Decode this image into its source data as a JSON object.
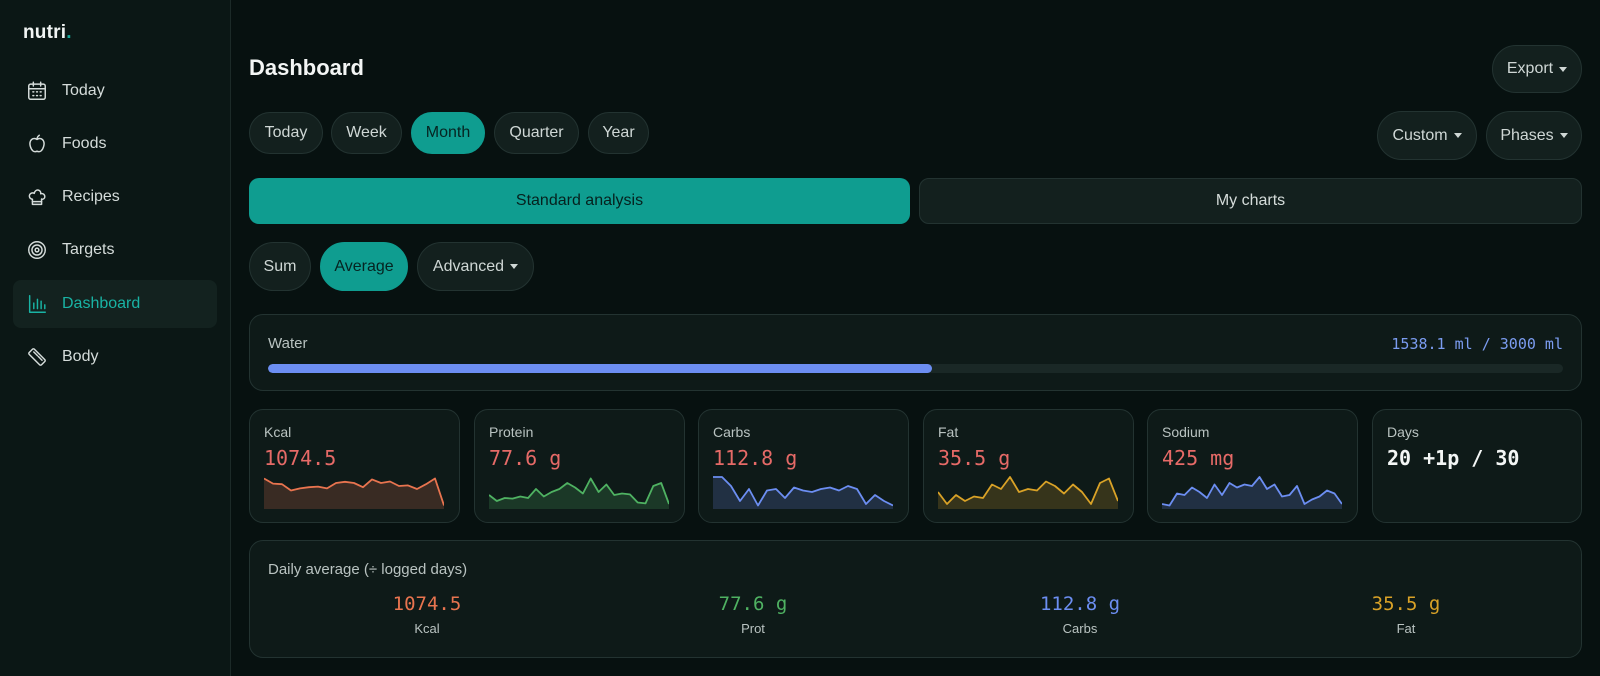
{
  "app": {
    "logo": "nutri",
    "logo_dot": "."
  },
  "sidebar": {
    "items": [
      {
        "label": "Today",
        "icon": "calendar-icon"
      },
      {
        "label": "Foods",
        "icon": "apple-icon"
      },
      {
        "label": "Recipes",
        "icon": "chef-hat-icon"
      },
      {
        "label": "Targets",
        "icon": "target-icon"
      },
      {
        "label": "Dashboard",
        "icon": "bar-chart-icon",
        "active": true
      },
      {
        "label": "Body",
        "icon": "ruler-icon"
      }
    ]
  },
  "header": {
    "title": "Dashboard",
    "export_label": "Export"
  },
  "periods": [
    "Today",
    "Week",
    "Month",
    "Quarter",
    "Year"
  ],
  "active_period": "Month",
  "range": {
    "custom_label": "Custom",
    "phases_label": "Phases"
  },
  "analysis_tabs": {
    "standard": "Standard analysis",
    "charts": "My charts"
  },
  "modes": {
    "sum": "Sum",
    "average": "Average",
    "advanced": "Advanced"
  },
  "water": {
    "label": "Water",
    "value": "1538.1 ml / 3000 ml",
    "fraction": 0.5127,
    "color": "#6c8ef2"
  },
  "stats": [
    {
      "label": "Kcal",
      "value": "1074.5",
      "color": "#e8744f",
      "series": [
        0.95,
        0.78,
        0.76,
        0.55,
        0.62,
        0.66,
        0.68,
        0.62,
        0.8,
        0.84,
        0.8,
        0.66,
        0.92,
        0.8,
        0.85,
        0.7,
        0.72,
        0.6,
        0.76,
        0.95,
        0.05
      ]
    },
    {
      "label": "Protein",
      "value": "77.6 g",
      "color": "#4fb262",
      "series": [
        0.4,
        0.2,
        0.3,
        0.28,
        0.35,
        0.3,
        0.6,
        0.35,
        0.5,
        0.6,
        0.8,
        0.65,
        0.45,
        0.95,
        0.5,
        0.75,
        0.4,
        0.45,
        0.42,
        0.15,
        0.12,
        0.7,
        0.8,
        0.1
      ]
    },
    {
      "label": "Carbs",
      "value": "112.8 g",
      "color": "#6c8ef2",
      "series": [
        1.0,
        1.0,
        0.7,
        0.2,
        0.6,
        0.05,
        0.55,
        0.6,
        0.3,
        0.65,
        0.55,
        0.5,
        0.6,
        0.65,
        0.55,
        0.7,
        0.6,
        0.1,
        0.4,
        0.2,
        0.05
      ]
    },
    {
      "label": "Fat",
      "value": "35.5 g",
      "color": "#d9a227",
      "series": [
        0.5,
        0.1,
        0.4,
        0.2,
        0.35,
        0.3,
        0.75,
        0.6,
        1.0,
        0.5,
        0.6,
        0.55,
        0.85,
        0.7,
        0.45,
        0.75,
        0.5,
        0.1,
        0.8,
        0.95,
        0.2
      ]
    },
    {
      "label": "Sodium",
      "value": "425 mg",
      "color": "#6c8ef2",
      "series": [
        0.1,
        0.05,
        0.45,
        0.4,
        0.65,
        0.5,
        0.3,
        0.75,
        0.4,
        0.8,
        0.65,
        0.75,
        0.7,
        1.0,
        0.6,
        0.75,
        0.35,
        0.4,
        0.7,
        0.1,
        0.25,
        0.35,
        0.55,
        0.45,
        0.1
      ]
    }
  ],
  "days": {
    "label": "Days",
    "value": "20 +1p / 30"
  },
  "daily_average": {
    "title": "Daily average (÷ logged days)",
    "items": [
      {
        "value": "1074.5",
        "label": "Kcal",
        "color": "#e8744f"
      },
      {
        "value": "77.6 g",
        "label": "Prot",
        "color": "#4fb262"
      },
      {
        "value": "112.8 g",
        "label": "Carbs",
        "color": "#6c8ef2"
      },
      {
        "value": "35.5 g",
        "label": "Fat",
        "color": "#d9a227"
      }
    ]
  }
}
